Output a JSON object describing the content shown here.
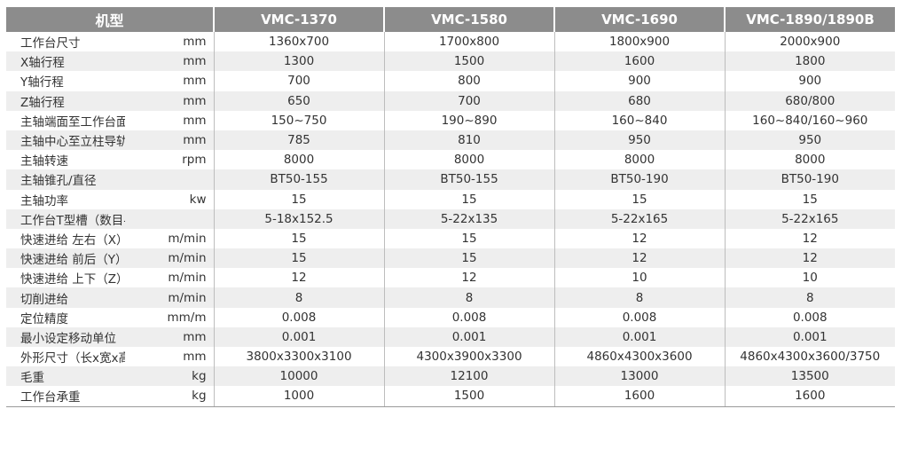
{
  "header": {
    "model_label": "机型",
    "models": [
      "VMC-1370",
      "VMC-1580",
      "VMC-1690",
      "VMC-1890/1890B"
    ]
  },
  "rows": [
    {
      "param": "工作台尺寸",
      "unit": "mm",
      "values": [
        "1360x700",
        "1700x800",
        "1800x900",
        "2000x900"
      ]
    },
    {
      "param": "X轴行程",
      "unit": "mm",
      "values": [
        "1300",
        "1500",
        "1600",
        "1800"
      ]
    },
    {
      "param": "Y轴行程",
      "unit": "mm",
      "values": [
        "700",
        "800",
        "900",
        "900"
      ]
    },
    {
      "param": "Z轴行程",
      "unit": "mm",
      "values": [
        "650",
        "700",
        "680",
        "680/800"
      ]
    },
    {
      "param": "主轴端面至工作台面距离",
      "unit": "mm",
      "values": [
        "150~750",
        "190~890",
        "160~840",
        "160~840/160~960"
      ]
    },
    {
      "param": "主轴中心至立柱导轨面距离",
      "unit": "mm",
      "values": [
        "785",
        "810",
        "950",
        "950"
      ]
    },
    {
      "param": "主轴转速",
      "unit": "rpm",
      "values": [
        "8000",
        "8000",
        "8000",
        "8000"
      ]
    },
    {
      "param": "主轴锥孔/直径",
      "unit": "",
      "values": [
        "BT50-155",
        "BT50-155",
        "BT50-190",
        "BT50-190"
      ]
    },
    {
      "param": "主轴功率",
      "unit": "kw",
      "values": [
        "15",
        "15",
        "15",
        "15"
      ]
    },
    {
      "param": "工作台T型槽（数目-尺寸x间距）",
      "unit": "",
      "values": [
        "5-18x152.5",
        "5-22x135",
        "5-22x165",
        "5-22x165"
      ]
    },
    {
      "param": "快速进给 左右（X）",
      "unit": "m/min",
      "values": [
        "15",
        "15",
        "12",
        "12"
      ]
    },
    {
      "param": "快速进给 前后（Y）",
      "unit": "m/min",
      "values": [
        "15",
        "15",
        "12",
        "12"
      ]
    },
    {
      "param": "快速进给 上下（Z）",
      "unit": "m/min",
      "values": [
        "12",
        "12",
        "10",
        "10"
      ]
    },
    {
      "param": "切削进给",
      "unit": "m/min",
      "values": [
        "8",
        "8",
        "8",
        "8"
      ]
    },
    {
      "param": "定位精度",
      "unit": "mm/m",
      "values": [
        "0.008",
        "0.008",
        "0.008",
        "0.008"
      ]
    },
    {
      "param": "最小设定移动单位",
      "unit": "mm",
      "values": [
        "0.001",
        "0.001",
        "0.001",
        "0.001"
      ]
    },
    {
      "param": "外形尺寸（长x宽x高）",
      "unit": "mm",
      "values": [
        "3800x3300x3100",
        "4300x3900x3300",
        "4860x4300x3600",
        "4860x4300x3600/3750"
      ]
    },
    {
      "param": "毛重",
      "unit": "kg",
      "values": [
        "10000",
        "12100",
        "13000",
        "13500"
      ]
    },
    {
      "param": "工作台承重",
      "unit": "kg",
      "values": [
        "1000",
        "1500",
        "1600",
        "1600"
      ]
    }
  ],
  "colors": {
    "header_bg": "#8c8c8c",
    "stripe_bg": "#eeeeee",
    "text": "#333333"
  }
}
